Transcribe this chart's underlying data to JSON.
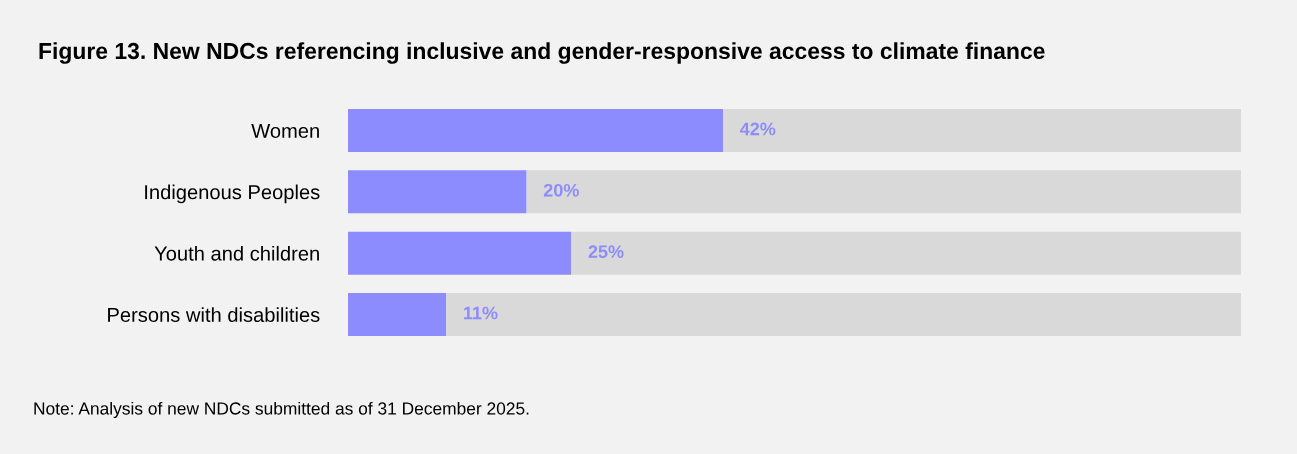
{
  "chart_data": {
    "type": "bar",
    "orientation": "horizontal",
    "stacked": true,
    "title": "Figure 13. New NDCs referencing inclusive and gender-responsive access to climate finance",
    "categories": [
      "Women",
      "Indigenous Peoples",
      "Youth and children",
      "Persons with disabilities"
    ],
    "series": [
      {
        "color": "#8c8cff",
        "values": [
          42,
          20,
          25,
          11
        ],
        "value_labels": [
          "42%",
          "20%",
          "25%",
          "11%"
        ]
      },
      {
        "color": "#d9d9d9",
        "values": [
          58,
          80,
          75,
          89
        ]
      }
    ],
    "xlim": [
      0,
      100
    ],
    "tick_labels": "y",
    "grid": false,
    "legend": false,
    "annotations": [
      "Note: Analysis of new NDCs submitted as of 31 December 2025."
    ]
  }
}
